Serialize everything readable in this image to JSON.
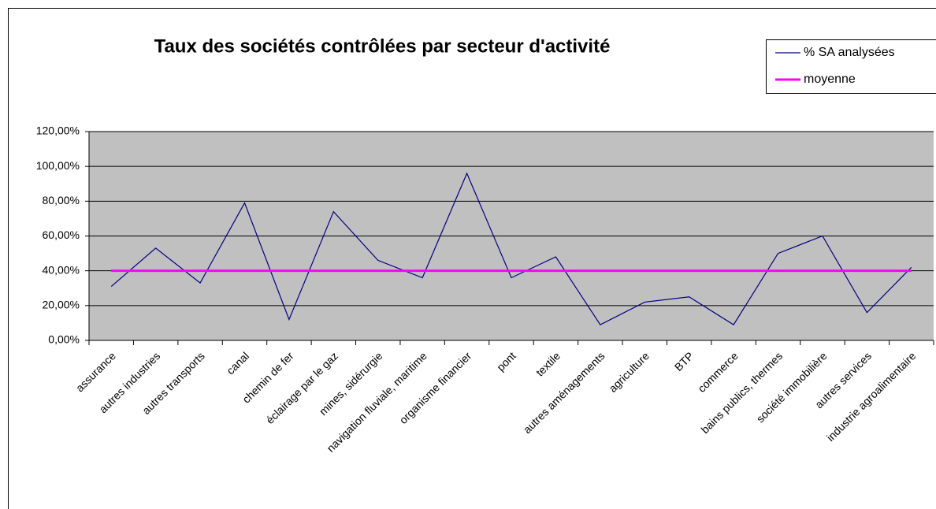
{
  "chart_data": {
    "type": "line",
    "title": "Taux des sociétés contrôlées par secteur d'activité",
    "categories": [
      "assurance",
      "autres industries",
      "autres transports",
      "canal",
      "chemin de fer",
      "éclairage par le gaz",
      "mines, sidérurgie",
      "navigation fluviale, maritime",
      "organisme financier",
      "pont",
      "textile",
      "autres aménagements",
      "agriculture",
      "BTP",
      "commerce",
      "bains publics, thermes",
      "société immobilière",
      "autres services",
      "industrie agroalimentaire"
    ],
    "series": [
      {
        "name": "% SA analysées",
        "color": "#000080",
        "values": [
          31,
          53,
          33,
          79,
          12,
          74,
          46,
          36,
          96,
          36,
          48,
          9,
          22,
          25,
          9,
          50,
          60,
          16,
          42
        ]
      },
      {
        "name": "moyenne",
        "color": "#ff00ff",
        "values": [
          40,
          40,
          40,
          40,
          40,
          40,
          40,
          40,
          40,
          40,
          40,
          40,
          40,
          40,
          40,
          40,
          40,
          40,
          40
        ]
      }
    ],
    "ylim": [
      0,
      120
    ],
    "yticks": [
      {
        "value": 0,
        "label": "0,00%"
      },
      {
        "value": 20,
        "label": "20,00%"
      },
      {
        "value": 40,
        "label": "40,00%"
      },
      {
        "value": 60,
        "label": "60,00%"
      },
      {
        "value": 80,
        "label": "80,00%"
      },
      {
        "value": 100,
        "label": "100,00%"
      },
      {
        "value": 120,
        "label": "120,00%"
      }
    ],
    "grid": true,
    "legend": "top-right"
  }
}
